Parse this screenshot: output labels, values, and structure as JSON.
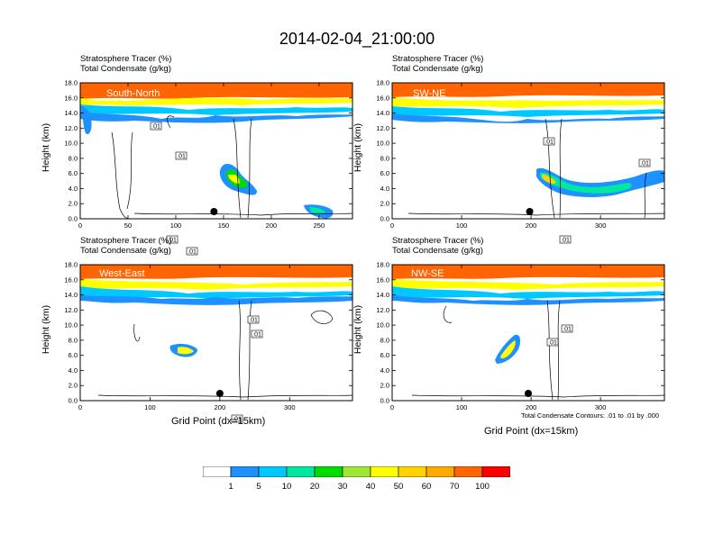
{
  "title": "2014-02-04_21:00:00",
  "contour_note": "Total Condensate Contours: .01 to .01 by .000",
  "colors": {
    "levels": [
      "#ffffff",
      "#1e90ff",
      "#00c8ff",
      "#00e8a0",
      "#00dc00",
      "#a0e632",
      "#ffff00",
      "#ffd200",
      "#ffaa00",
      "#ff6400",
      "#ff0000"
    ]
  },
  "colorbar": {
    "labels": [
      "1",
      "5",
      "10",
      "20",
      "30",
      "40",
      "50",
      "60",
      "70",
      "100"
    ]
  },
  "chart_data": [
    {
      "type": "heatmap",
      "title_line1": "Stratosphere Tracer   (%)",
      "title_line2": "Total Condensate   (g/kg)",
      "region": "South-North",
      "ylabel": "Height (km)",
      "xlabel": "",
      "xlim": [
        0,
        285
      ],
      "ylim": [
        0,
        18
      ],
      "xticks": [
        "0",
        "50",
        "100",
        "150",
        "200",
        "250"
      ],
      "xtick_values": [
        0,
        50,
        100,
        150,
        200,
        250
      ],
      "yticks": [
        "0.0",
        "2.0",
        "4.0",
        "6.0",
        "8.0",
        "10.0",
        "12.0",
        "14.0",
        "16.0",
        "18.0"
      ],
      "contour_labels": [
        ".01",
        ".01",
        ".01",
        ".01"
      ],
      "marker_x": 140
    },
    {
      "type": "heatmap",
      "title_line1": "Stratosphere Tracer   (%)",
      "title_line2": "Total Condensate   (g/kg)",
      "region": "SW-NE",
      "ylabel": "Height (km)",
      "xlabel": "",
      "xlim": [
        0,
        392
      ],
      "ylim": [
        0,
        18
      ],
      "xticks": [
        "0",
        "100",
        "200",
        "300"
      ],
      "xtick_values": [
        0,
        100,
        200,
        300
      ],
      "yticks": [
        "0.0",
        "2.0",
        "4.0",
        "6.0",
        "8.0",
        "10.0",
        "12.0",
        "14.0",
        "16.0",
        "18.0"
      ],
      "contour_labels": [
        ".01",
        ".01",
        ".01"
      ],
      "marker_x": 198
    },
    {
      "type": "heatmap",
      "title_line1": "Stratosphere Tracer   (%)",
      "title_line2": "Total Condensate   (g/kg)",
      "region": "West-East",
      "ylabel": "Height (km)",
      "xlabel": "Grid Point (dx=15km)",
      "xlim": [
        0,
        390
      ],
      "ylim": [
        0,
        18
      ],
      "xticks": [
        "0",
        "100",
        "200",
        "300"
      ],
      "xtick_values": [
        0,
        100,
        200,
        300
      ],
      "yticks": [
        "0.0",
        "2.0",
        "4.0",
        "6.0",
        "8.0",
        "10.0",
        "12.0",
        "14.0",
        "16.0",
        "18.0"
      ],
      "contour_labels": [
        ".01",
        ".01",
        ".01"
      ],
      "marker_x": 200
    },
    {
      "type": "heatmap",
      "title_line1": "Stratosphere Tracer   (%)",
      "title_line2": "Total Condensate   (g/kg)",
      "region": "NW-SE",
      "ylabel": "Height (km)",
      "xlabel": "Grid Point (dx=15km)",
      "xlim": [
        0,
        392
      ],
      "ylim": [
        0,
        18
      ],
      "xticks": [
        "0",
        "100",
        "200",
        "300"
      ],
      "xtick_values": [
        0,
        100,
        200,
        300
      ],
      "yticks": [
        "0.0",
        "2.0",
        "4.0",
        "6.0",
        "8.0",
        "10.0",
        "12.0",
        "14.0",
        "16.0",
        "18.0"
      ],
      "contour_labels": [
        ".01",
        ".01"
      ],
      "marker_x": 196
    }
  ]
}
